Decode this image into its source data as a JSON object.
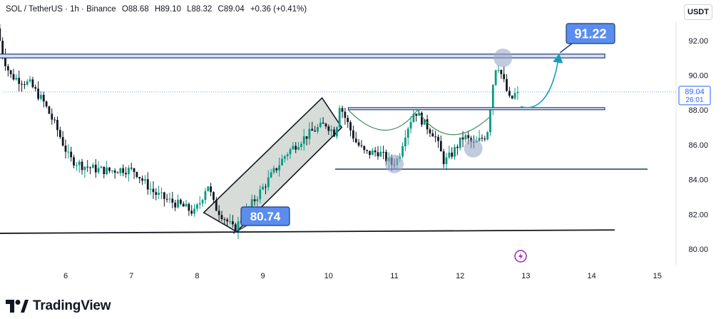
{
  "header": {
    "symbol": "SOL / TetherUS · 1h · Binance",
    "open": "O88.68",
    "high": "H89.10",
    "low": "L88.32",
    "close": "C89.04",
    "change": "+0.36 (+0.41%)"
  },
  "currency_button": "USDT",
  "branding": "TradingView",
  "callouts": {
    "low_target": "80.74",
    "high_target": "91.22"
  },
  "price_badge": {
    "price": "89.04",
    "countdown": "26:01"
  },
  "colors": {
    "up": "#089981",
    "down": "#131722",
    "accent": "#2962ff",
    "callout": "#5b8def",
    "curve": "#14a0b4"
  },
  "chart_data": {
    "type": "candlestick",
    "symbol": "SOL / TetherUS",
    "interval": "1h",
    "exchange": "Binance",
    "x_ticks": [
      "6",
      "7",
      "8",
      "9",
      "10",
      "11",
      "12",
      "13",
      "14",
      "15"
    ],
    "y_ticks": [
      "80.00",
      "82.00",
      "84.00",
      "86.00",
      "88.00",
      "90.00",
      "92.00"
    ],
    "ylim": [
      79.4,
      93.6
    ],
    "last_price": 89.04,
    "ohlc_path": [
      [
        5.0,
        92.7
      ],
      [
        5.1,
        91.0
      ],
      [
        5.2,
        90.0
      ],
      [
        5.3,
        89.8
      ],
      [
        5.5,
        89.5
      ],
      [
        5.7,
        88.5
      ],
      [
        5.9,
        87.0
      ],
      [
        6.1,
        85.2
      ],
      [
        6.3,
        84.8
      ],
      [
        6.5,
        84.6
      ],
      [
        6.7,
        84.5
      ],
      [
        6.9,
        84.6
      ],
      [
        7.1,
        84.5
      ],
      [
        7.2,
        84.0
      ],
      [
        7.4,
        83.2
      ],
      [
        7.6,
        82.8
      ],
      [
        7.8,
        82.5
      ],
      [
        8.0,
        82.1
      ],
      [
        8.1,
        82.8
      ],
      [
        8.2,
        83.8
      ],
      [
        8.3,
        82.5
      ],
      [
        8.5,
        81.6
      ],
      [
        8.6,
        81.1
      ],
      [
        8.8,
        82.2
      ],
      [
        9.0,
        83.3
      ],
      [
        9.2,
        84.4
      ],
      [
        9.4,
        85.5
      ],
      [
        9.6,
        86.2
      ],
      [
        9.8,
        86.8
      ],
      [
        10.0,
        87.2
      ],
      [
        10.15,
        86.6
      ],
      [
        10.2,
        88.4
      ],
      [
        10.3,
        87.5
      ],
      [
        10.45,
        86.2
      ],
      [
        10.6,
        85.5
      ],
      [
        10.8,
        85.6
      ],
      [
        11.0,
        84.9
      ],
      [
        11.1,
        85.2
      ],
      [
        11.2,
        86.6
      ],
      [
        11.35,
        88.0
      ],
      [
        11.5,
        87.2
      ],
      [
        11.65,
        86.6
      ],
      [
        11.8,
        85.0
      ],
      [
        11.9,
        85.4
      ],
      [
        12.1,
        86.5
      ],
      [
        12.25,
        86.0
      ],
      [
        12.45,
        86.6
      ],
      [
        12.55,
        89.8
      ],
      [
        12.6,
        90.8
      ],
      [
        12.7,
        89.7
      ],
      [
        12.8,
        88.5
      ],
      [
        12.9,
        89.04
      ]
    ],
    "annotations": {
      "support_line": {
        "from": [
          4.75,
          80.9
        ],
        "to": [
          14.35,
          81.1
        ]
      },
      "resistance_zone": [
        91.0,
        91.22
      ],
      "neckline_zone": [
        88.0,
        88.1
      ],
      "base_line": {
        "from": [
          10.1,
          84.6
        ],
        "to": [
          14.85,
          84.6
        ]
      },
      "channel": {
        "lower": [
          [
            8.1,
            82.1
          ],
          [
            10.2,
            87.0
          ]
        ],
        "upper": [
          [
            8.6,
            81.0
          ],
          [
            9.9,
            88.7
          ]
        ]
      },
      "target_up": 91.22,
      "target_low": 80.74,
      "circled_points": [
        [
          11.0,
          84.9
        ],
        [
          12.2,
          85.8
        ],
        [
          12.65,
          91.0
        ]
      ]
    }
  }
}
